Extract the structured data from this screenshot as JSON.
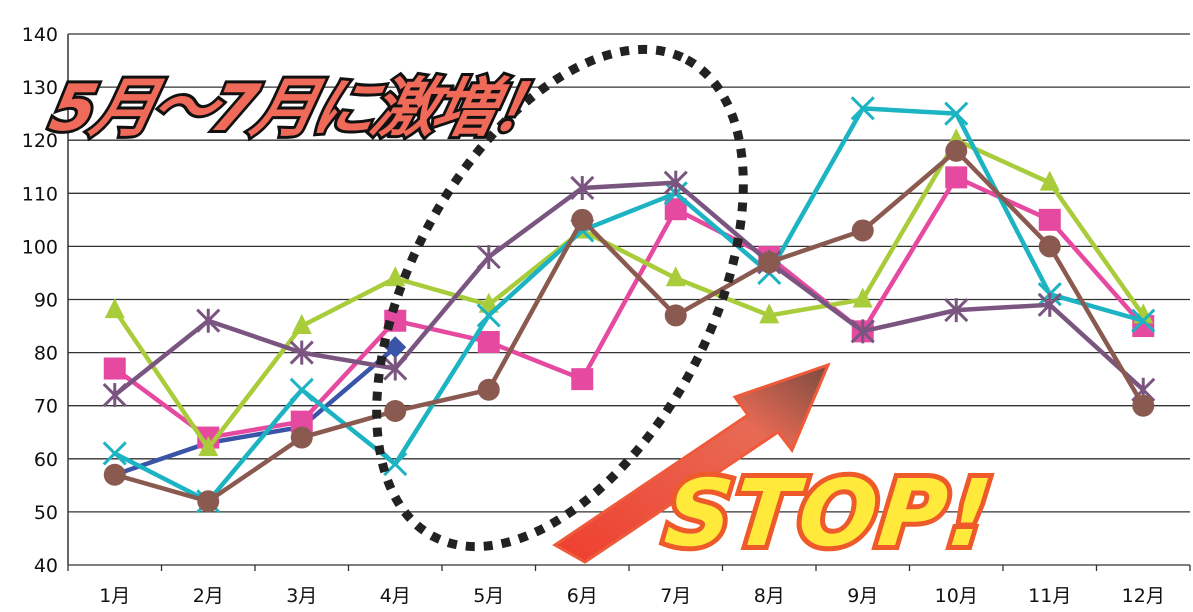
{
  "chart_data": {
    "type": "line",
    "title": "",
    "xlabel": "",
    "ylabel": "",
    "categories": [
      "1月",
      "2月",
      "3月",
      "4月",
      "5月",
      "6月",
      "7月",
      "8月",
      "9月",
      "10月",
      "11月",
      "12月"
    ],
    "ylim": [
      40,
      140
    ],
    "yticks": [
      40,
      50,
      60,
      70,
      80,
      90,
      100,
      110,
      120,
      130,
      140
    ],
    "grid": true,
    "legend": "none",
    "series": [
      {
        "color": "#3a55a8",
        "marker": "diamond",
        "values": [
          57,
          63,
          66,
          81,
          null,
          null,
          null,
          null,
          null,
          null,
          null,
          null
        ]
      },
      {
        "color": "#e64aa0",
        "marker": "square",
        "values": [
          77,
          64,
          67,
          86,
          82,
          75,
          107,
          98,
          84,
          113,
          105,
          85
        ]
      },
      {
        "color": "#a8cc3a",
        "marker": "triangle",
        "values": [
          88,
          62,
          85,
          94,
          89,
          103,
          94,
          87,
          90,
          120,
          112,
          87
        ]
      },
      {
        "color": "#1cb3c2",
        "marker": "x",
        "values": [
          61,
          52,
          73,
          59,
          87,
          103,
          110,
          95,
          126,
          125,
          91,
          86
        ]
      },
      {
        "color": "#7a5580",
        "marker": "star",
        "values": [
          72,
          86,
          80,
          77,
          98,
          111,
          112,
          97,
          84,
          88,
          89,
          73
        ]
      },
      {
        "color": "#8a5a50",
        "marker": "circle",
        "values": [
          57,
          52,
          64,
          69,
          73,
          105,
          87,
          97,
          103,
          118,
          100,
          70
        ]
      }
    ],
    "annotations": {
      "headline": "5月～7月に激増！",
      "stop": "STOP!"
    }
  },
  "colors": {
    "headline_fill": "#f06a5a",
    "stop_fill": "#ffe93a",
    "stop_outline": "#ef5a2a",
    "arrow": "#ef4a3a",
    "ellipse": "#222222"
  }
}
